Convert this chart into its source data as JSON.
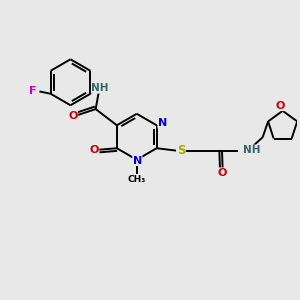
{
  "background_color": "#e8e8e8",
  "colors": {
    "C": "#000000",
    "N": "#0000cc",
    "O": "#cc0000",
    "F": "#cc00cc",
    "S": "#aaaa00",
    "NH": "#336666",
    "bond": "#000000"
  },
  "bond_lw": 1.4,
  "figsize": [
    3.0,
    3.0
  ],
  "dpi": 100
}
